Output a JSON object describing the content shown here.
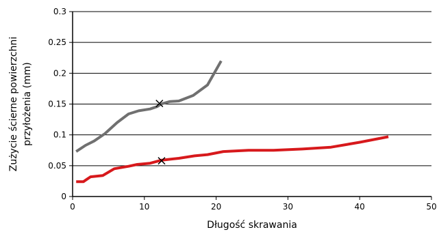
{
  "chart_data": {
    "type": "line",
    "xlabel": "Długość skrawania",
    "ylabel_lines": [
      "Zużycie ścierne powierzchni",
      "przyłożenia (mm)"
    ],
    "xlim": [
      0,
      50
    ],
    "ylim": [
      0,
      0.3
    ],
    "xticks": [
      0,
      10,
      20,
      30,
      40,
      50
    ],
    "yticks": [
      0,
      0.05,
      0.1,
      0.15,
      0.2,
      0.25,
      0.3
    ],
    "ytick_labels": [
      "0",
      "0.05",
      "0.1",
      "0.15",
      "0.2",
      "0.25",
      "0.3"
    ],
    "grid": "horizontal",
    "series": [
      {
        "color": "#707070",
        "points": [
          [
            0.5,
            0.073
          ],
          [
            1.8,
            0.083
          ],
          [
            3.0,
            0.09
          ],
          [
            4.5,
            0.102
          ],
          [
            6.2,
            0.12
          ],
          [
            7.8,
            0.134
          ],
          [
            9.2,
            0.139
          ],
          [
            10.8,
            0.142
          ],
          [
            11.8,
            0.146
          ],
          [
            12.3,
            0.15
          ],
          [
            13.5,
            0.154
          ],
          [
            14.8,
            0.155
          ],
          [
            16.8,
            0.164
          ],
          [
            18.8,
            0.181
          ],
          [
            20.7,
            0.22
          ]
        ],
        "marker": [
          12.1,
          0.151
        ]
      },
      {
        "color": "#d7191c",
        "points": [
          [
            0.5,
            0.024
          ],
          [
            1.5,
            0.024
          ],
          [
            2.5,
            0.032
          ],
          [
            4.2,
            0.034
          ],
          [
            5.8,
            0.045
          ],
          [
            7.8,
            0.049
          ],
          [
            9.0,
            0.052
          ],
          [
            10.8,
            0.054
          ],
          [
            12.4,
            0.059
          ],
          [
            14.8,
            0.062
          ],
          [
            17.0,
            0.066
          ],
          [
            18.8,
            0.068
          ],
          [
            21.0,
            0.073
          ],
          [
            24.5,
            0.075
          ],
          [
            28.0,
            0.075
          ],
          [
            32.0,
            0.077
          ],
          [
            36.0,
            0.08
          ],
          [
            40.0,
            0.088
          ],
          [
            44.0,
            0.097
          ]
        ],
        "marker": [
          12.4,
          0.058
        ]
      }
    ]
  }
}
